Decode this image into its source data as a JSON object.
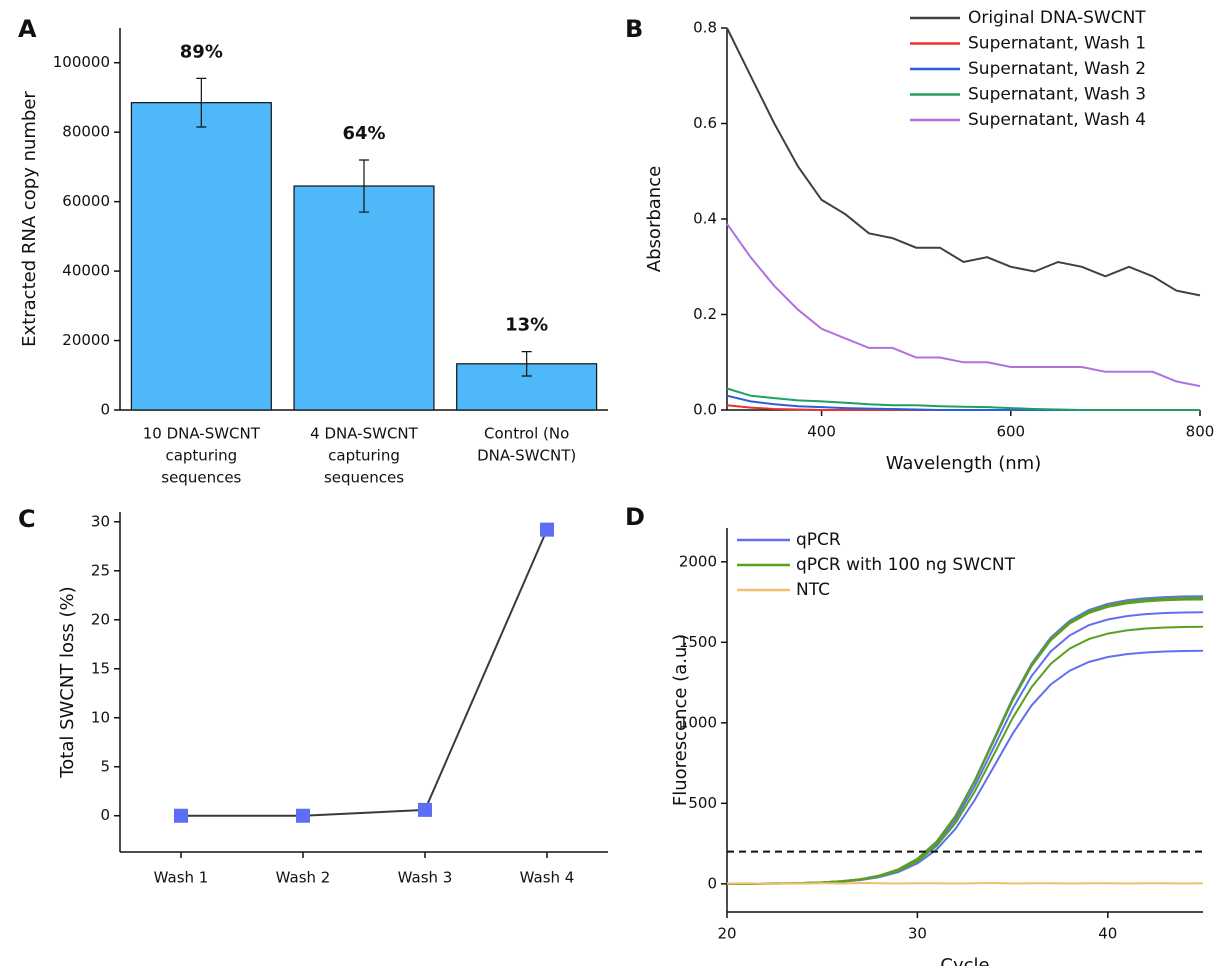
{
  "chart_data": [
    {
      "type": "bar",
      "panel": "A",
      "y_label": "Extracted RNA copy number",
      "categories": [
        [
          "10 DNA-SWCNT",
          "capturing",
          "sequences"
        ],
        [
          "4 DNA-SWCNT",
          "capturing",
          "sequences"
        ],
        [
          "Control (No",
          "DNA-SWCNT)"
        ]
      ],
      "values": [
        88500,
        64500,
        13300
      ],
      "errors": [
        7000,
        7500,
        3500
      ],
      "annotations": [
        "89%",
        "64%",
        "13%"
      ],
      "color": "#4fb8f8",
      "ylim": [
        0,
        110000
      ],
      "yticks": [
        0,
        20000,
        40000,
        60000,
        80000,
        100000
      ]
    },
    {
      "type": "line",
      "panel": "B",
      "x_label": "Wavelength (nm)",
      "y_label": "Absorbance",
      "x": [
        300,
        325,
        350,
        375,
        400,
        425,
        450,
        475,
        500,
        525,
        550,
        575,
        600,
        625,
        650,
        675,
        700,
        725,
        750,
        775,
        800
      ],
      "series": [
        {
          "name": "Original DNA-SWCNT",
          "color": "#404040",
          "values": [
            0.8,
            0.7,
            0.6,
            0.51,
            0.44,
            0.41,
            0.37,
            0.36,
            0.34,
            0.34,
            0.31,
            0.32,
            0.3,
            0.29,
            0.31,
            0.3,
            0.28,
            0.3,
            0.28,
            0.25,
            0.24
          ]
        },
        {
          "name": "Supernatant, Wash 1",
          "color": "#e8322b",
          "values": [
            0.01,
            0.005,
            0.002,
            0.001,
            0,
            0,
            0,
            0,
            0,
            0,
            0,
            0,
            0,
            0,
            0,
            0,
            0,
            0,
            0,
            0,
            0
          ]
        },
        {
          "name": "Supernatant, Wash 2",
          "color": "#2b5fd9",
          "values": [
            0.03,
            0.018,
            0.012,
            0.008,
            0.006,
            0.004,
            0.003,
            0.002,
            0.001,
            0,
            0,
            0,
            0,
            0,
            0,
            0,
            0,
            0,
            0,
            0,
            0
          ]
        },
        {
          "name": "Supernatant, Wash 3",
          "color": "#20a060",
          "values": [
            0.045,
            0.03,
            0.025,
            0.02,
            0.018,
            0.015,
            0.012,
            0.01,
            0.01,
            0.008,
            0.007,
            0.006,
            0.004,
            0.002,
            0.001,
            0,
            0,
            0,
            0,
            0,
            0
          ]
        },
        {
          "name": "Supernatant, Wash 4",
          "color": "#b070e0",
          "values": [
            0.39,
            0.32,
            0.26,
            0.21,
            0.17,
            0.15,
            0.13,
            0.13,
            0.11,
            0.11,
            0.1,
            0.1,
            0.09,
            0.09,
            0.09,
            0.09,
            0.08,
            0.08,
            0.08,
            0.06,
            0.05
          ]
        }
      ],
      "xlim": [
        300,
        800
      ],
      "xticks": [
        400,
        600,
        800
      ],
      "ylim": [
        0,
        0.8
      ],
      "yticks": [
        {
          "value": 0,
          "label": "0.0"
        },
        0.2,
        0.4,
        0.6,
        0.8
      ],
      "legend": "upper right"
    },
    {
      "type": "point-line",
      "panel": "C",
      "y_label": "Total SWCNT loss (%)",
      "categories": [
        "Wash 1",
        "Wash 2",
        "Wash 3",
        "Wash 4"
      ],
      "values": [
        0,
        0,
        0.6,
        29.2
      ],
      "color": "#5b6ef5",
      "line_color": "#3a3a3a",
      "ylim": [
        -3.7,
        31
      ],
      "yticks": [
        0,
        5,
        10,
        15,
        20,
        25,
        30
      ]
    },
    {
      "type": "curves",
      "panel": "D",
      "x_label": "Cycle",
      "y_label": "Fluorescence (a.u.)",
      "x": [
        20,
        21,
        22,
        23,
        24,
        25,
        26,
        27,
        28,
        29,
        30,
        31,
        32,
        33,
        34,
        35,
        36,
        37,
        38,
        39,
        40,
        41,
        42,
        43,
        44,
        45
      ],
      "series": [
        {
          "name": "qPCR",
          "color": "#6070f0",
          "values": [
            [
              1,
              1,
              2,
              3,
              5,
              9,
              16,
              29,
              51,
              90,
              156,
              261,
              422,
              639,
              895,
              1151,
              1368,
              1529,
              1634,
              1701,
              1739,
              1761,
              1774,
              1781,
              1785,
              1786
            ],
            [
              1,
              1,
              2,
              3,
              5,
              8,
              15,
              27,
              48,
              85,
              147,
              247,
              399,
              603,
              845,
              1087,
              1291,
              1443,
              1543,
              1606,
              1642,
              1663,
              1675,
              1682,
              1685,
              1687
            ],
            [
              0,
              1,
              1,
              2,
              4,
              7,
              13,
              23,
              41,
              73,
              127,
              212,
              342,
              518,
              725,
              932,
              1108,
              1238,
              1324,
              1378,
              1409,
              1427,
              1437,
              1443,
              1446,
              1447
            ]
          ]
        },
        {
          "name": "qPCR with 100 ng SWCNT",
          "color": "#5aa020",
          "values": [
            [
              1,
              1,
              2,
              3,
              5,
              9,
              16,
              28,
              51,
              89,
              155,
              260,
              420,
              635,
              890,
              1145,
              1360,
              1520,
              1625,
              1691,
              1729,
              1752,
              1764,
              1771,
              1775,
              1776
            ],
            [
              1,
              1,
              2,
              3,
              5,
              9,
              16,
              28,
              50,
              89,
              154,
              258,
              418,
              632,
              885,
              1138,
              1352,
              1512,
              1616,
              1682,
              1720,
              1742,
              1754,
              1761,
              1765,
              1766
            ],
            [
              0,
              1,
              1,
              2,
              4,
              8,
              14,
              26,
              46,
              80,
              139,
              234,
              378,
              571,
              800,
              1029,
              1222,
              1366,
              1461,
              1520,
              1554,
              1574,
              1586,
              1592,
              1595,
              1597
            ]
          ]
        },
        {
          "name": "NTC",
          "color": "#f0c070",
          "values": [
            [
              2,
              3,
              1,
              4,
              2,
              3,
              2,
              5,
              3,
              2,
              4,
              3,
              2,
              3,
              5,
              2,
              3,
              4,
              2,
              3,
              3,
              2,
              4,
              3,
              2,
              3
            ]
          ]
        }
      ],
      "threshold": 200,
      "xlim": [
        20,
        45
      ],
      "xticks": [
        20,
        30,
        40
      ],
      "ylim": [
        -175,
        2210
      ],
      "yticks": [
        0,
        500,
        1000,
        1500,
        2000
      ],
      "legend": "upper left"
    }
  ]
}
